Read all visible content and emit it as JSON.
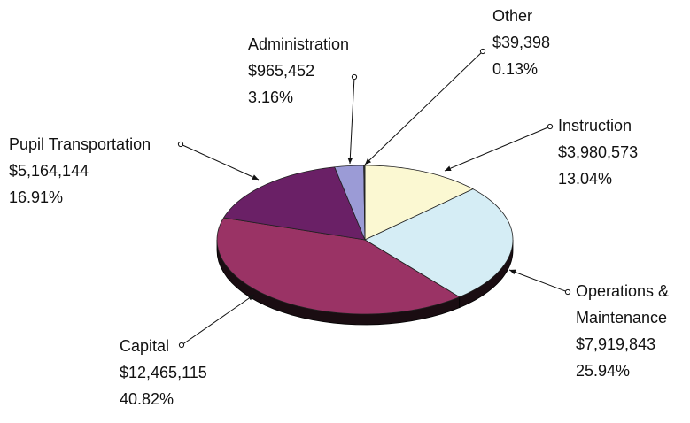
{
  "chart_data": {
    "type": "pie",
    "categories": [
      "Instruction",
      "Operations & Maintenance",
      "Capital",
      "Pupil Transportation",
      "Administration",
      "Other"
    ],
    "values": [
      3980573,
      7919843,
      12465115,
      5164144,
      965452,
      39398
    ],
    "value_labels": [
      "$3,980,573",
      "$7,919,843",
      "$12,465,115",
      "$5,164,144",
      "$965,452",
      "$39,398"
    ],
    "percents": [
      13.04,
      25.94,
      40.82,
      16.91,
      3.16,
      0.13
    ],
    "percent_labels": [
      "13.04%",
      "25.94%",
      "40.82%",
      "16.91%",
      "3.16%",
      "0.13%"
    ],
    "colors": [
      "#fbf8d2",
      "#d5edf5",
      "#9a3365",
      "#6a2066",
      "#9b9bd6",
      "#333333"
    ]
  }
}
